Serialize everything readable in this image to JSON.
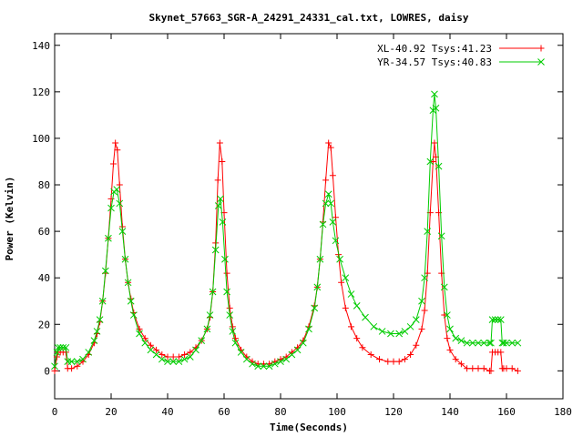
{
  "chart_data": {
    "type": "line",
    "title": "Skynet_57663_SGR-A_24291_24331_cal.txt, LOWRES, daisy",
    "xlabel": "Time(Seconds)",
    "ylabel": "Power (Kelvin)",
    "xlim": [
      0,
      180
    ],
    "ylim": [
      -12,
      145
    ],
    "xticks": [
      0,
      20,
      40,
      60,
      80,
      100,
      120,
      140,
      160,
      180
    ],
    "yticks": [
      0,
      20,
      40,
      60,
      80,
      100,
      120,
      140
    ],
    "legend_position": "top-right",
    "grid": false,
    "series": [
      {
        "name": "XL-40.92 Tsys:41.23",
        "color": "#ff0000",
        "marker": "plus",
        "points": [
          [
            0,
            0
          ],
          [
            0.8,
            6
          ],
          [
            1.2,
            8
          ],
          [
            2,
            8
          ],
          [
            3,
            8
          ],
          [
            4,
            8
          ],
          [
            4.6,
            1
          ],
          [
            6,
            1
          ],
          [
            8,
            2
          ],
          [
            10,
            4
          ],
          [
            12,
            7
          ],
          [
            14,
            12
          ],
          [
            15,
            16
          ],
          [
            16,
            21
          ],
          [
            17,
            30
          ],
          [
            18,
            42
          ],
          [
            19,
            57
          ],
          [
            20,
            74
          ],
          [
            20.8,
            89
          ],
          [
            21.5,
            98
          ],
          [
            22.2,
            95
          ],
          [
            23,
            80
          ],
          [
            24,
            62
          ],
          [
            25,
            48
          ],
          [
            26,
            38
          ],
          [
            27,
            31
          ],
          [
            28,
            25
          ],
          [
            30,
            18
          ],
          [
            32,
            14
          ],
          [
            34,
            11
          ],
          [
            36,
            9
          ],
          [
            38,
            7
          ],
          [
            40,
            6
          ],
          [
            42,
            6
          ],
          [
            44,
            6
          ],
          [
            46,
            7
          ],
          [
            48,
            8
          ],
          [
            50,
            10
          ],
          [
            52,
            13
          ],
          [
            54,
            18
          ],
          [
            55,
            23
          ],
          [
            56,
            34
          ],
          [
            57,
            55
          ],
          [
            57.8,
            82
          ],
          [
            58.5,
            98
          ],
          [
            59.3,
            90
          ],
          [
            60,
            68
          ],
          [
            61,
            42
          ],
          [
            62,
            27
          ],
          [
            63,
            19
          ],
          [
            64,
            14
          ],
          [
            66,
            9
          ],
          [
            68,
            6
          ],
          [
            70,
            4
          ],
          [
            72,
            3
          ],
          [
            74,
            3
          ],
          [
            76,
            3
          ],
          [
            78,
            4
          ],
          [
            80,
            5
          ],
          [
            82,
            6
          ],
          [
            84,
            8
          ],
          [
            86,
            10
          ],
          [
            88,
            13
          ],
          [
            90,
            19
          ],
          [
            92,
            28
          ],
          [
            93,
            36
          ],
          [
            94,
            48
          ],
          [
            95,
            64
          ],
          [
            96,
            82
          ],
          [
            97,
            98
          ],
          [
            97.8,
            96
          ],
          [
            98.5,
            84
          ],
          [
            99.5,
            66
          ],
          [
            100.5,
            50
          ],
          [
            101.5,
            38
          ],
          [
            103,
            27
          ],
          [
            105,
            19
          ],
          [
            107,
            14
          ],
          [
            109,
            10
          ],
          [
            112,
            7
          ],
          [
            115,
            5
          ],
          [
            118,
            4
          ],
          [
            120,
            4
          ],
          [
            122,
            4
          ],
          [
            124,
            5
          ],
          [
            126,
            7
          ],
          [
            128,
            11
          ],
          [
            130,
            18
          ],
          [
            131,
            26
          ],
          [
            132,
            42
          ],
          [
            133,
            68
          ],
          [
            134,
            90
          ],
          [
            134.5,
            98
          ],
          [
            135,
            92
          ],
          [
            136,
            68
          ],
          [
            137,
            42
          ],
          [
            138,
            24
          ],
          [
            139,
            14
          ],
          [
            140,
            9
          ],
          [
            142,
            5
          ],
          [
            144,
            3
          ],
          [
            146,
            1
          ],
          [
            148,
            1
          ],
          [
            150,
            1
          ],
          [
            152,
            1
          ],
          [
            154,
            0
          ],
          [
            154.5,
            0
          ],
          [
            155,
            8
          ],
          [
            156,
            8
          ],
          [
            157,
            8
          ],
          [
            158,
            8
          ],
          [
            158.5,
            1
          ],
          [
            159,
            1
          ],
          [
            160,
            1
          ],
          [
            162,
            1
          ],
          [
            164,
            0
          ]
        ]
      },
      {
        "name": "YR-34.57 Tsys:40.83",
        "color": "#00cc00",
        "marker": "cross",
        "points": [
          [
            0,
            2
          ],
          [
            0.8,
            8
          ],
          [
            1.2,
            10
          ],
          [
            2,
            10
          ],
          [
            3,
            10
          ],
          [
            4,
            10
          ],
          [
            4.6,
            4
          ],
          [
            6,
            4
          ],
          [
            8,
            4
          ],
          [
            10,
            5
          ],
          [
            12,
            8
          ],
          [
            14,
            13
          ],
          [
            15,
            17
          ],
          [
            16,
            22
          ],
          [
            17,
            30
          ],
          [
            18,
            43
          ],
          [
            19,
            57
          ],
          [
            20,
            70
          ],
          [
            21,
            77
          ],
          [
            22,
            78
          ],
          [
            23,
            72
          ],
          [
            24,
            60
          ],
          [
            25,
            48
          ],
          [
            26,
            38
          ],
          [
            27,
            30
          ],
          [
            28,
            24
          ],
          [
            30,
            16
          ],
          [
            32,
            12
          ],
          [
            34,
            9
          ],
          [
            36,
            7
          ],
          [
            38,
            5
          ],
          [
            40,
            4
          ],
          [
            42,
            4
          ],
          [
            44,
            4
          ],
          [
            46,
            5
          ],
          [
            48,
            6
          ],
          [
            50,
            9
          ],
          [
            52,
            13
          ],
          [
            54,
            18
          ],
          [
            55,
            24
          ],
          [
            56,
            34
          ],
          [
            57,
            52
          ],
          [
            58,
            71
          ],
          [
            58.7,
            74
          ],
          [
            59.5,
            64
          ],
          [
            60.3,
            48
          ],
          [
            61,
            34
          ],
          [
            62,
            24
          ],
          [
            63,
            17
          ],
          [
            64,
            12
          ],
          [
            66,
            8
          ],
          [
            68,
            5
          ],
          [
            70,
            3
          ],
          [
            72,
            2
          ],
          [
            74,
            2
          ],
          [
            76,
            2
          ],
          [
            78,
            3
          ],
          [
            80,
            4
          ],
          [
            82,
            5
          ],
          [
            84,
            7
          ],
          [
            86,
            9
          ],
          [
            88,
            12
          ],
          [
            90,
            18
          ],
          [
            92,
            27
          ],
          [
            93,
            36
          ],
          [
            94,
            48
          ],
          [
            95,
            63
          ],
          [
            96,
            72
          ],
          [
            97,
            76
          ],
          [
            97.8,
            72
          ],
          [
            98.5,
            64
          ],
          [
            99.5,
            56
          ],
          [
            101,
            48
          ],
          [
            103,
            40
          ],
          [
            105,
            33
          ],
          [
            107,
            28
          ],
          [
            110,
            23
          ],
          [
            113,
            19
          ],
          [
            116,
            17
          ],
          [
            119,
            16
          ],
          [
            122,
            16
          ],
          [
            124,
            17
          ],
          [
            126,
            19
          ],
          [
            128,
            22
          ],
          [
            130,
            30
          ],
          [
            131,
            40
          ],
          [
            132,
            60
          ],
          [
            133,
            90
          ],
          [
            134,
            112
          ],
          [
            134.5,
            119
          ],
          [
            135,
            113
          ],
          [
            136,
            88
          ],
          [
            137,
            58
          ],
          [
            138,
            36
          ],
          [
            139,
            24
          ],
          [
            140,
            18
          ],
          [
            142,
            14
          ],
          [
            144,
            13
          ],
          [
            146,
            12
          ],
          [
            148,
            12
          ],
          [
            150,
            12
          ],
          [
            152,
            12
          ],
          [
            154,
            12
          ],
          [
            154.5,
            12
          ],
          [
            155,
            22
          ],
          [
            156,
            22
          ],
          [
            157,
            22
          ],
          [
            158,
            22
          ],
          [
            158.5,
            12
          ],
          [
            159,
            12
          ],
          [
            160,
            12
          ],
          [
            162,
            12
          ],
          [
            164,
            12
          ]
        ]
      }
    ]
  }
}
